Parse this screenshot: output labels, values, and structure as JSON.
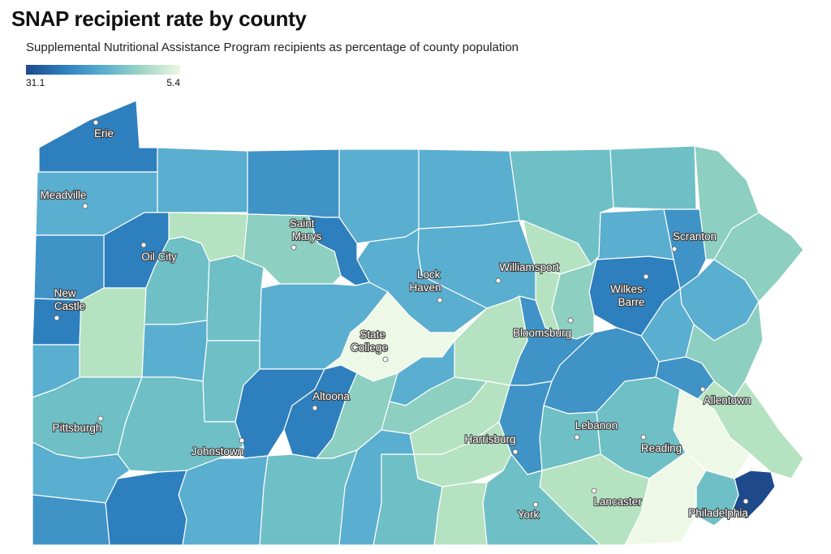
{
  "title": "SNAP recipient rate by county",
  "subtitle": "Supplemental Nutritional Assistance Program recipients as percentage of county population",
  "legend": {
    "min_label": "31.1",
    "max_label": "5.4"
  },
  "colors": {
    "darkest": "#1e4a8c",
    "dark": "#2e7fbe",
    "mid_dark": "#3f93c6",
    "mid": "#5aaed0",
    "teal": "#6fbfc6",
    "light_teal": "#8dcfc0",
    "pale_green": "#b5e2c0",
    "palest": "#eef8e6",
    "border": "#ffffff"
  },
  "cities": [
    {
      "name": "Erie",
      "lines": [
        "Erie"
      ]
    },
    {
      "name": "Meadville",
      "lines": [
        "Meadville"
      ]
    },
    {
      "name": "Oil City",
      "lines": [
        "Oil City"
      ]
    },
    {
      "name": "New Castle",
      "lines": [
        "New",
        "Castle"
      ]
    },
    {
      "name": "Saint Marys",
      "lines": [
        "Saint",
        "Marys"
      ]
    },
    {
      "name": "Lock Haven",
      "lines": [
        "Lock",
        "Haven"
      ]
    },
    {
      "name": "Williamsport",
      "lines": [
        "Williamsport"
      ]
    },
    {
      "name": "Scranton",
      "lines": [
        "Scranton"
      ]
    },
    {
      "name": "Wilkes-Barre",
      "lines": [
        "Wilkes-",
        "Barre"
      ]
    },
    {
      "name": "State College",
      "lines": [
        "State",
        "College"
      ]
    },
    {
      "name": "Bloomsburg",
      "lines": [
        "Bloomsburg"
      ]
    },
    {
      "name": "Altoona",
      "lines": [
        "Altoona"
      ]
    },
    {
      "name": "Allentown",
      "lines": [
        "Allentown"
      ]
    },
    {
      "name": "Pittsburgh",
      "lines": [
        "Pittsburgh"
      ]
    },
    {
      "name": "Johnstown",
      "lines": [
        "Johnstown"
      ]
    },
    {
      "name": "Lebanon",
      "lines": [
        "Lebanon"
      ]
    },
    {
      "name": "Harrisburg",
      "lines": [
        "Harrisburg"
      ]
    },
    {
      "name": "Reading",
      "lines": [
        "Reading"
      ]
    },
    {
      "name": "Lancaster",
      "lines": [
        "Lancaster"
      ]
    },
    {
      "name": "Philadelphia",
      "lines": [
        "Philadelphia"
      ]
    },
    {
      "name": "York",
      "lines": [
        "York"
      ]
    }
  ]
}
